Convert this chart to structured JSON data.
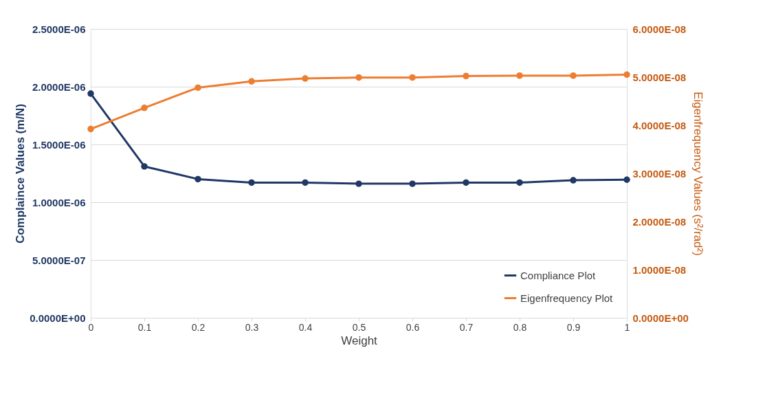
{
  "chart_data": {
    "type": "line",
    "xlabel": "Weight",
    "ylabel": "Complaince Values (m/N)",
    "y2label": "Eigenfrequency Values (s²/rad²)",
    "x": [
      0,
      0.1,
      0.2,
      0.3,
      0.4,
      0.5,
      0.6,
      0.7,
      0.8,
      0.9,
      1
    ],
    "series": [
      {
        "name": "Compliance Plot",
        "color": "#1f3864",
        "values": [
          1.94e-06,
          1.31e-06,
          1.2e-06,
          1.17e-06,
          1.17e-06,
          1.16e-06,
          1.16e-06,
          1.17e-06,
          1.17e-06,
          1.19e-06,
          1.195e-06
        ]
      },
      {
        "name": "Eigenfrequency Plot",
        "color": "#ed7d31",
        "axis": "y2",
        "values": [
          3.92e-08,
          4.36e-08,
          4.78e-08,
          4.91e-08,
          4.97e-08,
          4.99e-08,
          4.99e-08,
          5.02e-08,
          5.03e-08,
          5.03e-08,
          5.05e-08
        ]
      }
    ],
    "xlim": [
      0,
      1
    ],
    "xticks": [
      0,
      0.1,
      0.2,
      0.3,
      0.4,
      0.5,
      0.6,
      0.7,
      0.8,
      0.9,
      1
    ],
    "ylim": [
      0,
      2.5e-06
    ],
    "yticks": [
      {
        "value": 0,
        "label": "0.0000E+00"
      },
      {
        "value": 5e-07,
        "label": "5.0000E-07"
      },
      {
        "value": 1e-06,
        "label": "1.0000E-06"
      },
      {
        "value": 1.5e-06,
        "label": "1.5000E-06"
      },
      {
        "value": 2e-06,
        "label": "2.0000E-06"
      },
      {
        "value": 2.5e-06,
        "label": "2.5000E-06"
      }
    ],
    "y2lim": [
      0,
      6e-08
    ],
    "y2ticks": [
      {
        "value": 0,
        "label": "0.0000E+00"
      },
      {
        "value": 1e-08,
        "label": "1.0000E-08"
      },
      {
        "value": 2e-08,
        "label": "2.0000E-08"
      },
      {
        "value": 3e-08,
        "label": "3.0000E-08"
      },
      {
        "value": 4e-08,
        "label": "4.0000E-08"
      },
      {
        "value": 5e-08,
        "label": "5.0000E-08"
      },
      {
        "value": 6e-08,
        "label": "6.0000E-08"
      }
    ],
    "grid": "y",
    "legend": "bottom right",
    "marker": "circle",
    "line_style": "solid"
  }
}
